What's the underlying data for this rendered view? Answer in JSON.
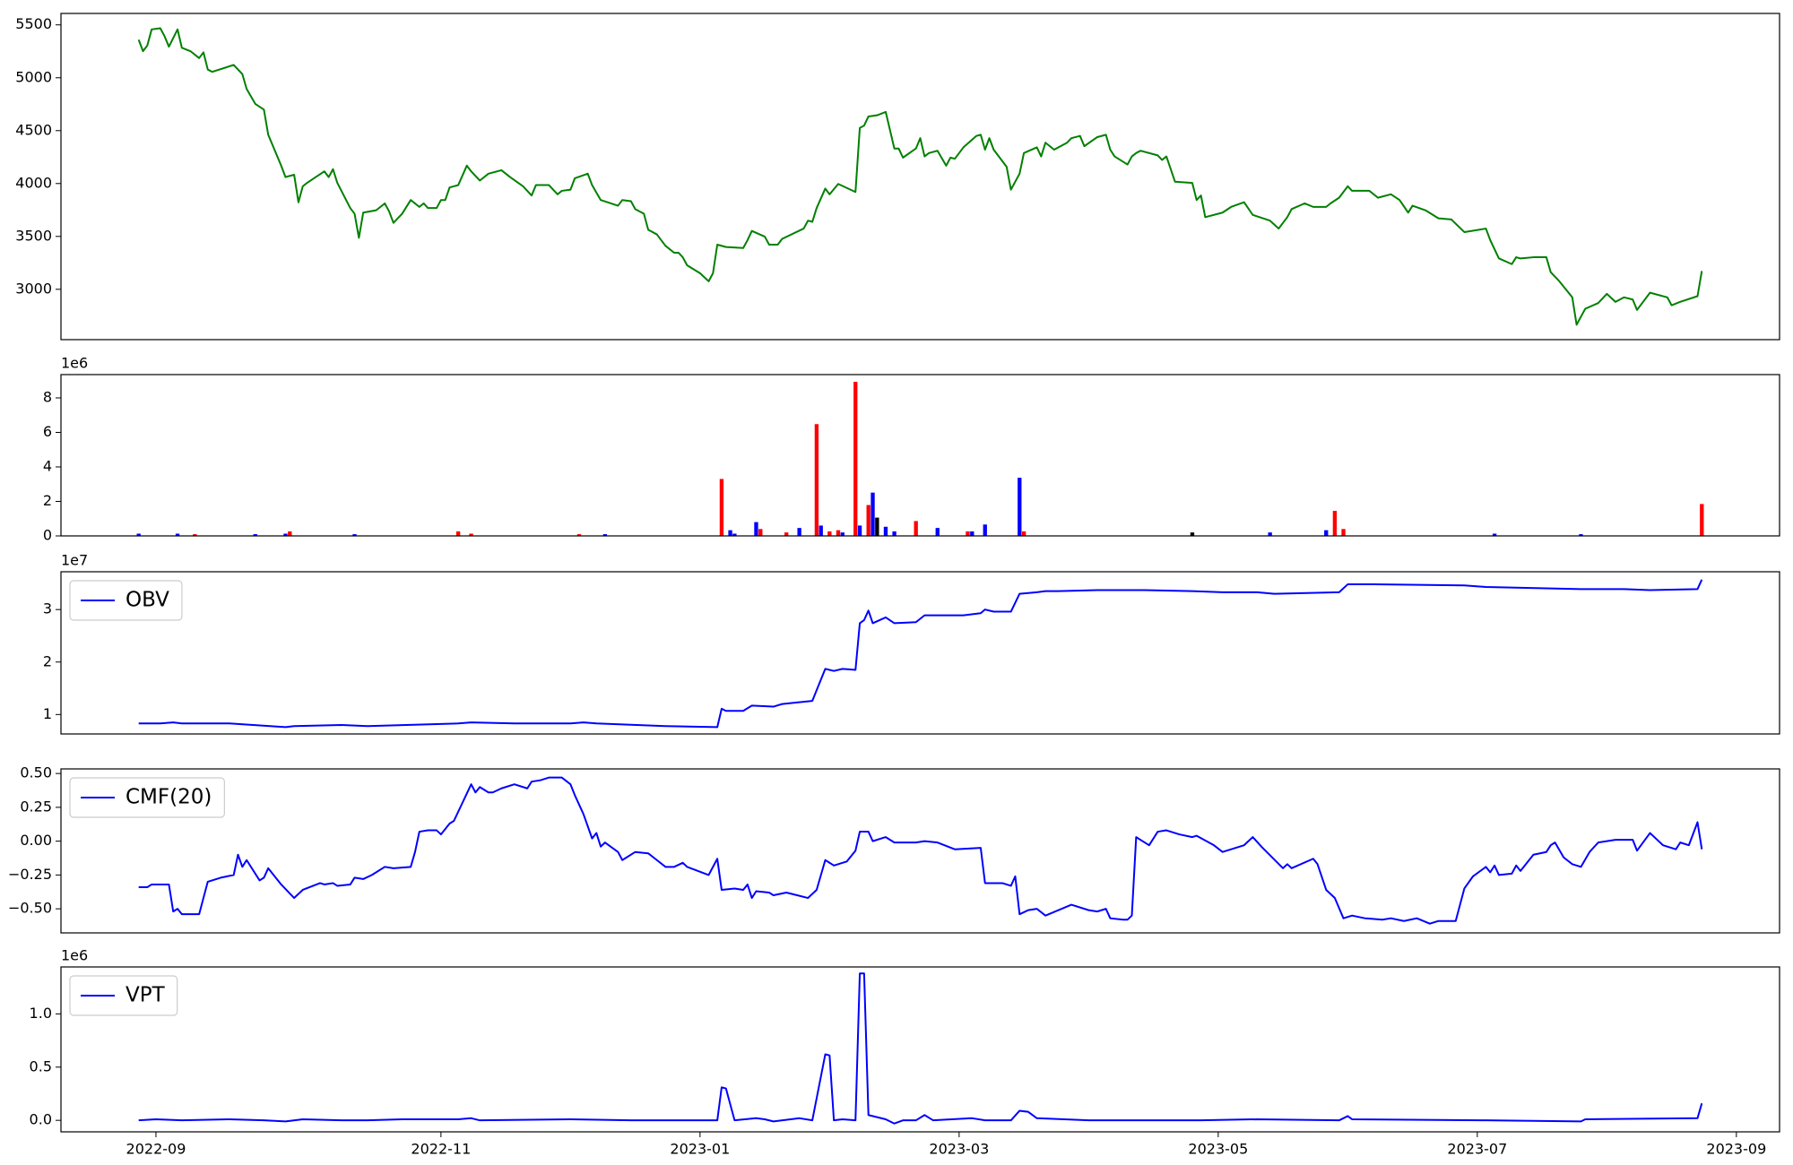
{
  "chart_data": [
    {
      "type": "line",
      "color": "#008000",
      "xlim": [
        -18,
        380
      ],
      "ylim": [
        2524,
        5608
      ],
      "yticks": [
        3000,
        3500,
        4000,
        4500,
        5000,
        5500
      ],
      "x": [
        0,
        1,
        2,
        3,
        5,
        6,
        7,
        9,
        10,
        12,
        14,
        15,
        16,
        17,
        22,
        24,
        25,
        27,
        29,
        30,
        33,
        34,
        36,
        37,
        38,
        39,
        43,
        44,
        45,
        46,
        49,
        50,
        51,
        52,
        55,
        57,
        58,
        59,
        61,
        63,
        65,
        66,
        67,
        69,
        70,
        71,
        72,
        74,
        76,
        77,
        79,
        81,
        84,
        86,
        89,
        91,
        92,
        95,
        97,
        98,
        100,
        101,
        104,
        105,
        107,
        111,
        112,
        114,
        115,
        117,
        118,
        120,
        122,
        124,
        125,
        126,
        127,
        130,
        132,
        133,
        134,
        136,
        140,
        141,
        142,
        145,
        146,
        148,
        149,
        154,
        155,
        156,
        157,
        159,
        160,
        162,
        166,
        167,
        168,
        169,
        171,
        173,
        175,
        176,
        177,
        180,
        181,
        182,
        183,
        185,
        187,
        188,
        189,
        191,
        194,
        195,
        196,
        197,
        198,
        201,
        202,
        204,
        205,
        208,
        209,
        210,
        212,
        215,
        216,
        218,
        219,
        222,
        224,
        225,
        226,
        229,
        230,
        231,
        232,
        236,
        237,
        238,
        240,
        244,
        245,
        246,
        247,
        251,
        253,
        256,
        258,
        262,
        264,
        266,
        267,
        270,
        272,
        275,
        276,
        278,
        280,
        281,
        285,
        287,
        290,
        292,
        294,
        295,
        298,
        301,
        304,
        307,
        312,
        313,
        315,
        318,
        319,
        320,
        323,
        326,
        327,
        329,
        332,
        333,
        335,
        338,
        340,
        342,
        344,
        346,
        347,
        350,
        354,
        355,
        357,
        361,
        362
      ],
      "values": [
        5359,
        5251,
        5305,
        5457,
        5468,
        5392,
        5294,
        5457,
        5283,
        5251,
        5186,
        5240,
        5078,
        5056,
        5121,
        5035,
        4894,
        4753,
        4699,
        4461,
        4169,
        4061,
        4083,
        3823,
        3974,
        4006,
        4115,
        4061,
        4136,
        4006,
        3768,
        3714,
        3487,
        3725,
        3747,
        3812,
        3736,
        3628,
        3714,
        3844,
        3779,
        3812,
        3768,
        3768,
        3844,
        3844,
        3963,
        3985,
        4169,
        4115,
        4028,
        4093,
        4126,
        4061,
        3974,
        3887,
        3985,
        3985,
        3898,
        3931,
        3942,
        4050,
        4093,
        3985,
        3844,
        3790,
        3844,
        3833,
        3758,
        3714,
        3563,
        3519,
        3411,
        3346,
        3346,
        3303,
        3227,
        3152,
        3076,
        3152,
        3422,
        3400,
        3390,
        3465,
        3552,
        3498,
        3422,
        3422,
        3476,
        3574,
        3649,
        3638,
        3768,
        3952,
        3898,
        3996,
        3920,
        4526,
        4548,
        4634,
        4645,
        4677,
        4331,
        4331,
        4245,
        4331,
        4429,
        4256,
        4288,
        4310,
        4169,
        4245,
        4234,
        4342,
        4450,
        4461,
        4320,
        4429,
        4320,
        4158,
        3942,
        4093,
        4288,
        4342,
        4256,
        4386,
        4320,
        4386,
        4429,
        4450,
        4353,
        4439,
        4461,
        4320,
        4256,
        4180,
        4256,
        4288,
        4310,
        4266,
        4223,
        4256,
        4017,
        4006,
        3844,
        3887,
        3682,
        3725,
        3779,
        3823,
        3703,
        3649,
        3574,
        3682,
        3758,
        3812,
        3779,
        3779,
        3812,
        3866,
        3974,
        3931,
        3931,
        3866,
        3898,
        3844,
        3725,
        3790,
        3747,
        3671,
        3660,
        3541,
        3574,
        3465,
        3292,
        3238,
        3303,
        3292,
        3303,
        3303,
        3162,
        3076,
        2924,
        2665,
        2816,
        2870,
        2957,
        2881,
        2924,
        2903,
        2805,
        2968,
        2924,
        2849,
        2881,
        2935,
        3173
      ]
    },
    {
      "type": "bar",
      "y_offset_text": "1e6",
      "xlim": [
        -18,
        380
      ],
      "ylim": [
        0,
        9.35
      ],
      "yticks": [
        0,
        2,
        4,
        6,
        8
      ],
      "x": [
        0,
        9,
        13,
        27,
        34,
        35,
        50,
        74,
        77,
        102,
        108,
        135,
        137,
        138,
        143,
        144,
        150,
        153,
        157,
        158,
        160,
        162,
        163,
        166,
        167,
        169,
        170,
        171,
        173,
        175,
        180,
        185,
        192,
        193,
        196,
        204,
        205,
        244,
        262,
        275,
        277,
        279,
        314,
        334,
        362
      ],
      "values": [
        0.13,
        0.13,
        0.1,
        0.1,
        0.13,
        0.26,
        0.1,
        0.26,
        0.13,
        0.1,
        0.1,
        3.3,
        0.33,
        0.13,
        0.8,
        0.4,
        0.2,
        0.46,
        6.48,
        0.6,
        0.26,
        0.33,
        0.2,
        8.93,
        0.6,
        1.79,
        2.51,
        1.06,
        0.53,
        0.26,
        0.86,
        0.46,
        0.26,
        0.26,
        0.66,
        3.37,
        0.26,
        0.2,
        0.2,
        0.33,
        1.45,
        0.4,
        0.13,
        0.1,
        1.85
      ],
      "colors": [
        "#0000ff",
        "#0000ff",
        "#ff0000",
        "#0000ff",
        "#0000ff",
        "#ff0000",
        "#0000ff",
        "#ff0000",
        "#ff0000",
        "#ff0000",
        "#0000ff",
        "#ff0000",
        "#0000ff",
        "#0000ff",
        "#0000ff",
        "#ff0000",
        "#ff0000",
        "#0000ff",
        "#ff0000",
        "#0000ff",
        "#ff0000",
        "#ff0000",
        "#0000ff",
        "#ff0000",
        "#0000ff",
        "#ff0000",
        "#0000ff",
        "#000000",
        "#0000ff",
        "#0000ff",
        "#ff0000",
        "#0000ff",
        "#ff0000",
        "#0000ff",
        "#0000ff",
        "#0000ff",
        "#ff0000",
        "#000000",
        "#0000ff",
        "#0000ff",
        "#ff0000",
        "#ff0000",
        "#0000ff",
        "#0000ff",
        "#ff0000"
      ]
    },
    {
      "type": "line",
      "y_offset_text": "1e7",
      "legend": "upper left",
      "xlim": [
        -18,
        380
      ],
      "ylim": [
        0.63,
        3.72
      ],
      "yticks": [
        1,
        2,
        3
      ],
      "x": [
        0,
        5,
        8,
        10,
        21,
        34,
        36,
        47,
        53,
        74,
        77,
        87,
        100,
        103,
        106,
        122,
        134,
        135,
        136,
        140,
        142,
        147,
        149,
        156,
        159,
        161,
        163,
        166,
        167,
        168,
        169,
        170,
        173,
        175,
        180,
        182,
        184,
        191,
        195,
        196,
        198,
        202,
        204,
        208,
        210,
        213,
        222,
        233,
        244,
        251,
        259,
        263,
        278,
        280,
        286,
        307,
        312,
        334,
        344,
        350,
        361,
        362
      ],
      "series": [
        {
          "name": "OBV",
          "color": "#0000ff",
          "values": [
            0.83,
            0.83,
            0.85,
            0.83,
            0.83,
            0.76,
            0.78,
            0.8,
            0.78,
            0.83,
            0.85,
            0.83,
            0.83,
            0.85,
            0.83,
            0.78,
            0.76,
            1.11,
            1.07,
            1.07,
            1.17,
            1.15,
            1.2,
            1.26,
            1.87,
            1.83,
            1.87,
            1.85,
            2.74,
            2.8,
            2.98,
            2.74,
            2.85,
            2.74,
            2.76,
            2.89,
            2.89,
            2.89,
            2.93,
            3,
            2.96,
            2.96,
            3.3,
            3.33,
            3.35,
            3.35,
            3.37,
            3.37,
            3.35,
            3.33,
            3.33,
            3.3,
            3.33,
            3.48,
            3.48,
            3.46,
            3.43,
            3.39,
            3.39,
            3.37,
            3.39,
            3.57
          ]
        }
      ]
    },
    {
      "type": "line",
      "legend": "upper left",
      "xlim": [
        -18,
        380
      ],
      "ylim": [
        -0.678,
        0.534
      ],
      "yticks": [
        {
          "value": -0.5,
          "label": "−0.50"
        },
        {
          "value": -0.25,
          "label": "−0.25"
        },
        {
          "value": 0,
          "label": "0.00"
        },
        {
          "value": 0.25,
          "label": "0.25"
        },
        {
          "value": 0.5,
          "label": "0.50"
        }
      ],
      "x": [
        0,
        2,
        3,
        5,
        7,
        8,
        9,
        10,
        14,
        16,
        19,
        22,
        23,
        24,
        25,
        28,
        29,
        30,
        33,
        36,
        38,
        42,
        43,
        45,
        46,
        49,
        50,
        52,
        54,
        57,
        59,
        63,
        64,
        65,
        67,
        69,
        70,
        72,
        73,
        77,
        78,
        79,
        81,
        82,
        84,
        87,
        90,
        91,
        93,
        95,
        98,
        100,
        101,
        103,
        105,
        106,
        107,
        108,
        111,
        112,
        115,
        118,
        120,
        122,
        124,
        126,
        127,
        132,
        134,
        135,
        138,
        140,
        141,
        142,
        143,
        146,
        147,
        150,
        155,
        157,
        159,
        161,
        164,
        166,
        167,
        169,
        170,
        173,
        175,
        180,
        182,
        185,
        189,
        195,
        196,
        200,
        202,
        203,
        204,
        206,
        208,
        210,
        216,
        220,
        222,
        224,
        225,
        228,
        229,
        230,
        231,
        234,
        236,
        238,
        241,
        244,
        245,
        249,
        251,
        256,
        258,
        260,
        265,
        266,
        267,
        272,
        273,
        275,
        277,
        279,
        281,
        284,
        288,
        290,
        293,
        296,
        299,
        301,
        305,
        307,
        309,
        312,
        313,
        314,
        315,
        318,
        319,
        320,
        323,
        326,
        327,
        328,
        330,
        332,
        334,
        336,
        338,
        342,
        346,
        347,
        350,
        353,
        356,
        357,
        359,
        361,
        362
      ],
      "series": [
        {
          "name": "CMF(20)",
          "color": "#0000ff",
          "values": [
            -0.34,
            -0.34,
            -0.32,
            -0.32,
            -0.32,
            -0.52,
            -0.5,
            -0.54,
            -0.54,
            -0.3,
            -0.27,
            -0.25,
            -0.1,
            -0.19,
            -0.14,
            -0.29,
            -0.27,
            -0.2,
            -0.32,
            -0.42,
            -0.36,
            -0.31,
            -0.32,
            -0.31,
            -0.33,
            -0.32,
            -0.27,
            -0.28,
            -0.25,
            -0.19,
            -0.2,
            -0.19,
            -0.08,
            0.07,
            0.08,
            0.08,
            0.05,
            0.13,
            0.15,
            0.42,
            0.36,
            0.4,
            0.36,
            0.36,
            0.39,
            0.42,
            0.39,
            0.44,
            0.45,
            0.47,
            0.47,
            0.42,
            0.34,
            0.2,
            0.02,
            0.06,
            -0.04,
            -0.01,
            -0.08,
            -0.14,
            -0.08,
            -0.09,
            -0.14,
            -0.19,
            -0.19,
            -0.16,
            -0.19,
            -0.25,
            -0.13,
            -0.36,
            -0.35,
            -0.36,
            -0.32,
            -0.42,
            -0.37,
            -0.38,
            -0.4,
            -0.38,
            -0.42,
            -0.36,
            -0.14,
            -0.18,
            -0.15,
            -0.07,
            0.07,
            0.07,
            0,
            0.03,
            -0.01,
            -0.01,
            0,
            -0.01,
            -0.06,
            -0.05,
            -0.31,
            -0.31,
            -0.33,
            -0.26,
            -0.54,
            -0.51,
            -0.5,
            -0.55,
            -0.47,
            -0.51,
            -0.52,
            -0.5,
            -0.57,
            -0.58,
            -0.58,
            -0.55,
            0.03,
            -0.03,
            0.07,
            0.08,
            0.05,
            0.03,
            0.04,
            -0.03,
            -0.08,
            -0.03,
            0.03,
            -0.04,
            -0.2,
            -0.17,
            -0.2,
            -0.13,
            -0.17,
            -0.36,
            -0.42,
            -0.57,
            -0.55,
            -0.57,
            -0.58,
            -0.57,
            -0.59,
            -0.57,
            -0.61,
            -0.59,
            -0.59,
            -0.35,
            -0.26,
            -0.19,
            -0.23,
            -0.18,
            -0.25,
            -0.24,
            -0.18,
            -0.22,
            -0.1,
            -0.08,
            -0.03,
            -0.01,
            -0.12,
            -0.17,
            -0.19,
            -0.08,
            -0.01,
            0.01,
            0.01,
            -0.07,
            0.06,
            -0.03,
            -0.06,
            -0.01,
            -0.03,
            0.14,
            -0.06
          ]
        }
      ]
    },
    {
      "type": "line",
      "y_offset_text": "1e6",
      "legend": "upper left",
      "xlim": [
        -18,
        380
      ],
      "ylim": [
        -0.108,
        1.441
      ],
      "yticks": [
        {
          "value": 0,
          "label": "0.0"
        },
        {
          "value": 0.5,
          "label": "0.5"
        },
        {
          "value": 1,
          "label": "1.0"
        }
      ],
      "xticks": [
        {
          "value": 4,
          "label": "2022-09"
        },
        {
          "value": 70,
          "label": "2022-11"
        },
        {
          "value": 130,
          "label": "2023-01"
        },
        {
          "value": 190,
          "label": "2023-03"
        },
        {
          "value": 250,
          "label": "2023-05"
        },
        {
          "value": 310,
          "label": "2023-07"
        },
        {
          "value": 370,
          "label": "2023-09"
        }
      ],
      "x": [
        0,
        4,
        10,
        21,
        29,
        34,
        38,
        47,
        53,
        61,
        74,
        77,
        79,
        100,
        114,
        134,
        135,
        136,
        138,
        143,
        145,
        147,
        153,
        156,
        159,
        160,
        161,
        163,
        166,
        167,
        168,
        169,
        173,
        175,
        177,
        180,
        182,
        184,
        193,
        196,
        202,
        204,
        206,
        208,
        220,
        246,
        259,
        278,
        280,
        281,
        312,
        334,
        335,
        361,
        362
      ],
      "series": [
        {
          "name": "VPT",
          "color": "#0000ff",
          "values": [
            0,
            0.01,
            0,
            0.01,
            0,
            -0.01,
            0.01,
            0,
            0,
            0.01,
            0.01,
            0.02,
            0,
            0.01,
            0,
            0,
            0.31,
            0.3,
            0,
            0.02,
            0.01,
            -0.01,
            0.02,
            0,
            0.62,
            0.61,
            0,
            0.01,
            0,
            1.38,
            1.38,
            0.05,
            0.01,
            -0.03,
            0,
            0,
            0.05,
            0,
            0.02,
            0,
            0,
            0.09,
            0.08,
            0.02,
            0,
            0,
            0.01,
            0,
            0.04,
            0.01,
            0,
            -0.01,
            0.01,
            0.02,
            0.16
          ]
        }
      ]
    }
  ]
}
